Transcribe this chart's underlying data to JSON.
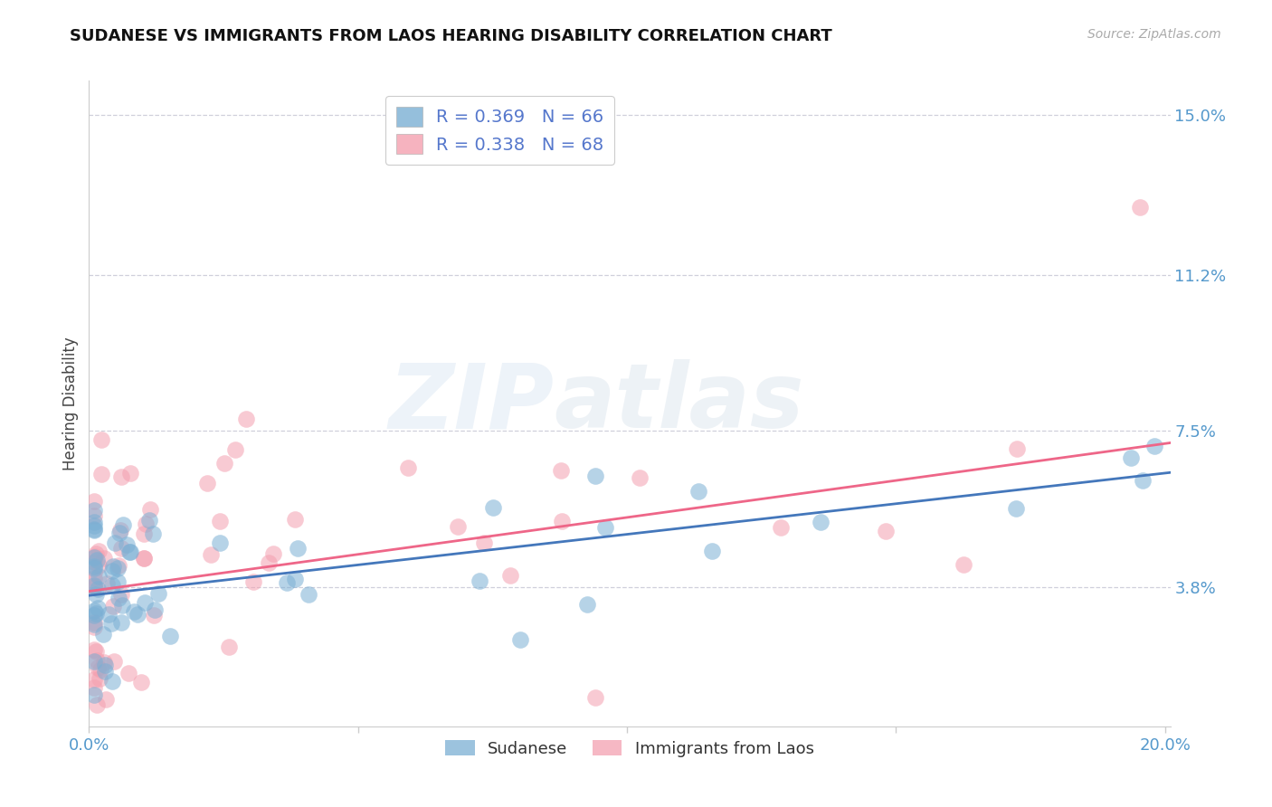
{
  "title": "SUDANESE VS IMMIGRANTS FROM LAOS HEARING DISABILITY CORRELATION CHART",
  "source": "Source: ZipAtlas.com",
  "ylabel": "Hearing Disability",
  "xlim": [
    0.0,
    0.201
  ],
  "ylim": [
    0.005,
    0.158
  ],
  "ytick_vals": [
    0.038,
    0.075,
    0.112,
    0.15
  ],
  "ytick_labels": [
    "3.8%",
    "7.5%",
    "11.2%",
    "15.0%"
  ],
  "xtick_vals": [
    0.0,
    0.05,
    0.1,
    0.15,
    0.2
  ],
  "xtick_labels": [
    "0.0%",
    "",
    "",
    "",
    "20.0%"
  ],
  "blue_color": "#7BAFD4",
  "pink_color": "#F4A0B0",
  "blue_line_color": "#4477BB",
  "pink_line_color": "#EE6688",
  "R_blue": "0.369",
  "N_blue": "66",
  "R_pink": "0.338",
  "N_pink": "68",
  "legend_label_blue": "Sudanese",
  "legend_label_pink": "Immigrants from Laos",
  "watermark_zip": "ZIP",
  "watermark_atlas": "atlas",
  "blue_intercept": 0.036,
  "blue_slope": 0.145,
  "pink_intercept": 0.037,
  "pink_slope": 0.175
}
